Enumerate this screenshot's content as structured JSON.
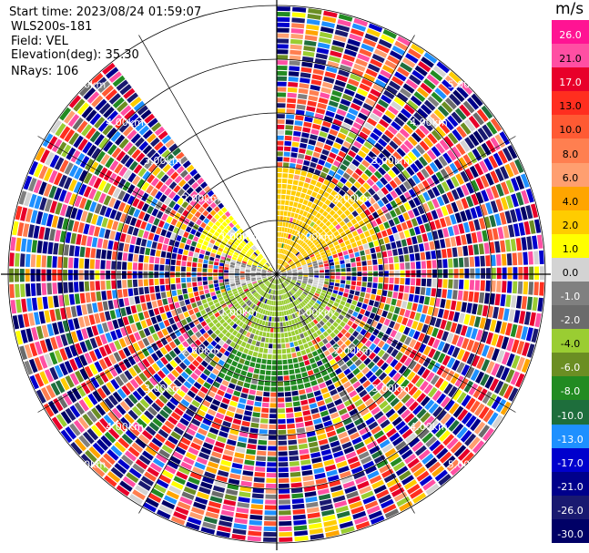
{
  "info": {
    "start_time": "Start time: 2023/08/24 01:59:07",
    "instrument": "WLS200s-181",
    "field": "Field: VEL",
    "elevation": "Elevation(deg): 35.30",
    "nrays": "NRays: 106"
  },
  "colorbar": {
    "unit": "m/s",
    "ticks": [
      "26.0",
      "21.0",
      "17.0",
      "13.0",
      "10.0",
      "8.0",
      "6.0",
      "4.0",
      "2.0",
      "1.0",
      "0.0",
      "-1.0",
      "-2.0",
      "-4.0",
      "-6.0",
      "-8.0",
      "-10.0",
      "-13.0",
      "-17.0",
      "-21.0",
      "-26.0",
      "-30.0"
    ],
    "colors": [
      "#ff1493",
      "#ff4fa3",
      "#e8002a",
      "#ff2e1f",
      "#ff5a33",
      "#ff7f50",
      "#ff9f70",
      "#ffa500",
      "#ffcc00",
      "#ffff00",
      "#d3d3d3",
      "#808080",
      "#6b6b6b",
      "#9acd32",
      "#6b8e23",
      "#228b22",
      "#1e6e3c",
      "#1e90ff",
      "#0000cd",
      "#00008b",
      "#191970",
      "#000066",
      "#000044"
    ]
  },
  "chart_data": {
    "type": "ppi-polar",
    "field": "VEL",
    "units": "m/s",
    "nrays": 106,
    "elevation_deg": 35.3,
    "range_rings_km": [
      1.0,
      2.0,
      3.0,
      4.0,
      5.0
    ],
    "range_ring_labels": [
      "1.00km",
      "2.00km",
      "3.00km",
      "4.00km",
      "5.00km"
    ],
    "max_range_km": 5.0,
    "color_scale_min": -30.0,
    "color_scale_max": 26.0,
    "data_gap_azimuth_deg": [
      322,
      360
    ],
    "near_field_sectors": [
      {
        "azimuth_deg": [
          0,
          70
        ],
        "max_range_km": 2.0,
        "velocity_ms": 3.0
      },
      {
        "azimuth_deg": [
          290,
          322
        ],
        "max_range_km": 1.6,
        "velocity_ms": 1.5
      },
      {
        "azimuth_deg": [
          70,
          110
        ],
        "max_range_km": 0.9,
        "velocity_ms": 0.0
      },
      {
        "azimuth_deg": [
          250,
          290
        ],
        "max_range_km": 0.9,
        "velocity_ms": 0.0
      },
      {
        "azimuth_deg": [
          110,
          250
        ],
        "max_range_km": 1.6,
        "velocity_ms": -2.5
      },
      {
        "azimuth_deg": [
          150,
          210
        ],
        "max_range_km": 2.2,
        "velocity_ms": -6.5
      }
    ],
    "far_field": "noise (random velocities over full color scale)"
  }
}
